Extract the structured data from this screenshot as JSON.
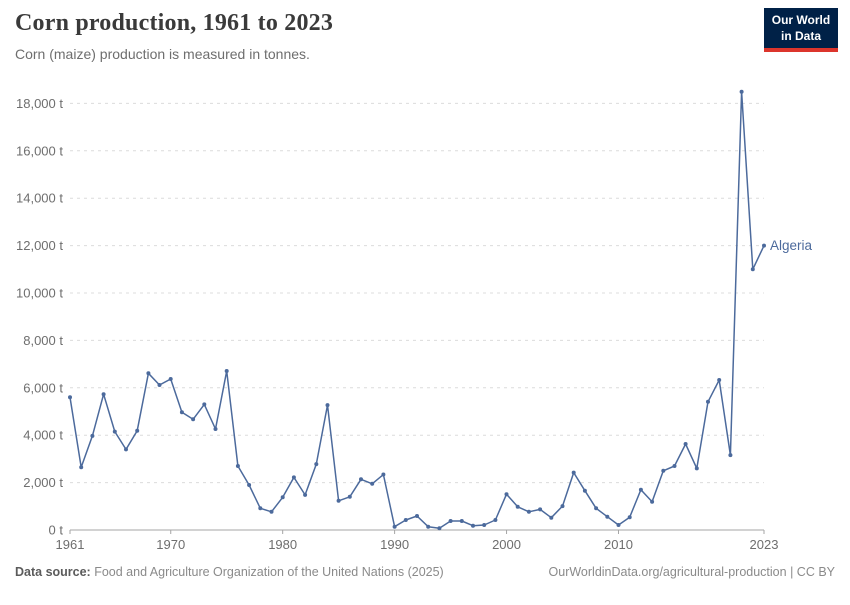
{
  "header": {
    "title": "Corn production, 1961 to 2023",
    "subtitle": "Corn (maize) production is measured in tonnes."
  },
  "logo": {
    "line1": "Our World",
    "line2": "in Data",
    "bg_color": "#002147",
    "accent_color": "#dc352c"
  },
  "chart_data": {
    "type": "line",
    "title": "Corn production, 1961 to 2023",
    "ylabel": "",
    "xlabel": "",
    "unit": "t",
    "line_color": "#4C6A9C",
    "grid": "horizontal-dashed",
    "xlim": [
      1961,
      2023
    ],
    "ylim": [
      0,
      18500
    ],
    "xticks": [
      1961,
      1970,
      1980,
      1990,
      2000,
      2010,
      2023
    ],
    "yticks": [
      0,
      2000,
      4000,
      6000,
      8000,
      10000,
      12000,
      14000,
      16000,
      18000
    ],
    "end_label": "Algeria",
    "series": [
      {
        "name": "Algeria",
        "color": "#4C6A9C",
        "x": [
          1961,
          1962,
          1963,
          1964,
          1965,
          1966,
          1967,
          1968,
          1969,
          1970,
          1971,
          1972,
          1973,
          1974,
          1975,
          1976,
          1977,
          1978,
          1979,
          1980,
          1981,
          1982,
          1983,
          1984,
          1985,
          1986,
          1987,
          1988,
          1989,
          1990,
          1991,
          1992,
          1993,
          1994,
          1995,
          1996,
          1997,
          1998,
          1999,
          2000,
          2001,
          2002,
          2003,
          2004,
          2005,
          2006,
          2007,
          2008,
          2009,
          2010,
          2011,
          2012,
          2013,
          2014,
          2015,
          2016,
          2017,
          2018,
          2019,
          2020,
          2021,
          2022,
          2023
        ],
        "values": [
          5600,
          2650,
          3970,
          5730,
          4150,
          3400,
          4190,
          6610,
          6120,
          6370,
          4970,
          4670,
          5300,
          4260,
          6710,
          2700,
          1900,
          915,
          770,
          1380,
          2220,
          1480,
          2780,
          5270,
          1230,
          1400,
          2140,
          1950,
          2340,
          140,
          420,
          590,
          140,
          70,
          380,
          380,
          180,
          210,
          420,
          1510,
          980,
          770,
          870,
          520,
          1010,
          2420,
          1660,
          915,
          560,
          210,
          540,
          1700,
          1190,
          2500,
          2700,
          3630,
          2600,
          5410,
          6330,
          3160,
          18490,
          11000,
          12000
        ]
      }
    ]
  },
  "footer": {
    "source_label": "Data source:",
    "source_text": " Food and Agriculture Organization of the United Nations (2025)",
    "link_text": "OurWorldinData.org/agricultural-production",
    "separator": " | ",
    "license": "CC BY"
  }
}
